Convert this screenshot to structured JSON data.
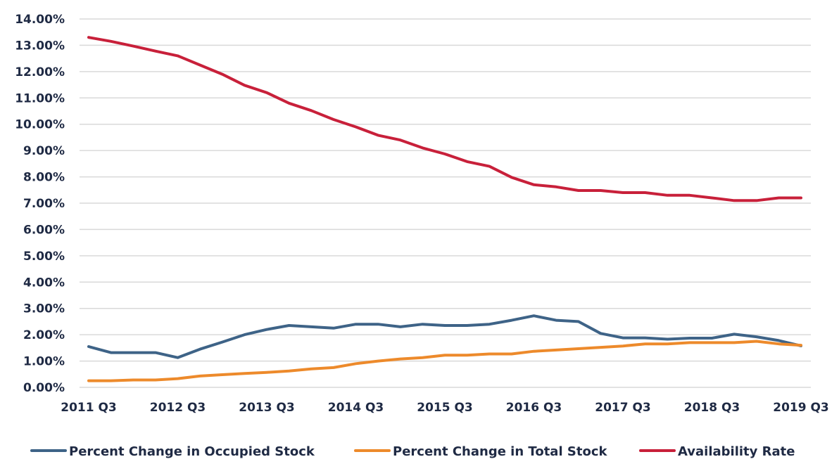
{
  "chart_data": {
    "type": "line",
    "x": [
      "2011 Q3",
      "2011 Q4",
      "2012 Q1",
      "2012 Q2",
      "2012 Q3",
      "2012 Q4",
      "2013 Q1",
      "2013 Q2",
      "2013 Q3",
      "2013 Q4",
      "2014 Q1",
      "2014 Q2",
      "2014 Q3",
      "2014 Q4",
      "2015 Q1",
      "2015 Q2",
      "2015 Q3",
      "2015 Q4",
      "2016 Q1",
      "2016 Q2",
      "2016 Q3",
      "2016 Q4",
      "2017 Q1",
      "2017 Q2",
      "2017 Q3",
      "2017 Q4",
      "2018 Q1",
      "2018 Q2",
      "2018 Q3",
      "2018 Q4",
      "2019 Q1",
      "2019 Q2",
      "2019 Q3"
    ],
    "x_tick_labels": [
      "2011 Q3",
      "2012 Q3",
      "2013 Q3",
      "2014 Q3",
      "2015 Q3",
      "2016 Q3",
      "2017 Q3",
      "2018 Q3",
      "2019 Q3"
    ],
    "y_tick_labels": [
      "0.00%",
      "1.00%",
      "2.00%",
      "3.00%",
      "4.00%",
      "5.00%",
      "6.00%",
      "7.00%",
      "8.00%",
      "9.00%",
      "10.00%",
      "11.00%",
      "12.00%",
      "13.00%",
      "14.00%"
    ],
    "ylim": [
      0,
      14
    ],
    "grid": true,
    "legend_position": "bottom",
    "series": [
      {
        "name": "Percent Change in Occupied Stock",
        "color": "#3e6387",
        "values": [
          1.55,
          1.32,
          1.32,
          1.32,
          1.13,
          1.45,
          1.72,
          2.0,
          2.2,
          2.35,
          2.3,
          2.25,
          2.4,
          2.4,
          2.3,
          2.4,
          2.35,
          2.35,
          2.4,
          2.55,
          2.72,
          2.55,
          2.5,
          2.05,
          1.88,
          1.88,
          1.83,
          1.87,
          1.87,
          2.02,
          1.92,
          1.78,
          1.58
        ]
      },
      {
        "name": "Percent Change in Total Stock",
        "color": "#ed8a2b",
        "values": [
          0.25,
          0.25,
          0.28,
          0.28,
          0.33,
          0.43,
          0.48,
          0.53,
          0.57,
          0.62,
          0.7,
          0.75,
          0.9,
          1.0,
          1.08,
          1.13,
          1.22,
          1.22,
          1.27,
          1.27,
          1.37,
          1.42,
          1.47,
          1.52,
          1.57,
          1.65,
          1.65,
          1.7,
          1.7,
          1.7,
          1.75,
          1.65,
          1.6
        ]
      },
      {
        "name": "Availability Rate",
        "color": "#c8203a",
        "values": [
          13.3,
          13.15,
          12.97,
          12.78,
          12.6,
          12.25,
          11.9,
          11.48,
          11.2,
          10.8,
          10.52,
          10.18,
          9.9,
          9.58,
          9.4,
          9.1,
          8.87,
          8.58,
          8.4,
          7.98,
          7.7,
          7.62,
          7.48,
          7.48,
          7.4,
          7.4,
          7.3,
          7.3,
          7.2,
          7.1,
          7.1,
          7.2,
          7.2
        ]
      }
    ]
  }
}
